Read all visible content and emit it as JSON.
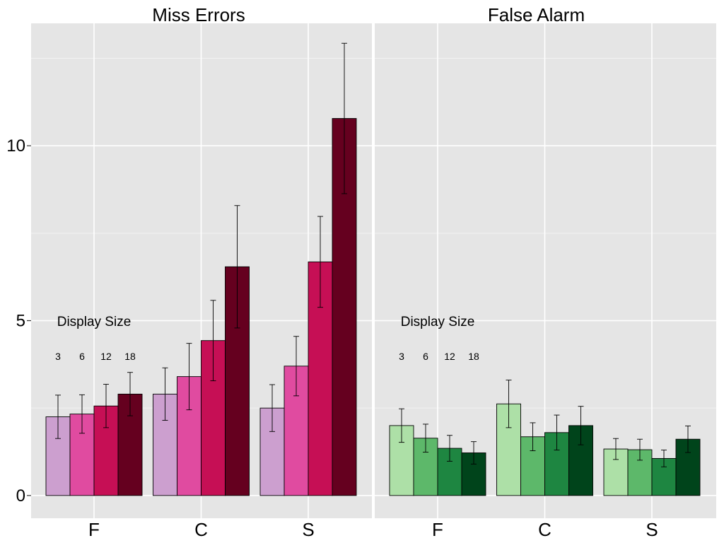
{
  "chart_data": [
    {
      "type": "bar",
      "title": "Miss Errors",
      "categories": [
        "F",
        "C",
        "S"
      ],
      "xlabel": "",
      "ylabel": "",
      "ylim": [
        -0.65,
        13.5
      ],
      "yticks": [
        0,
        5,
        10
      ],
      "legend": {
        "title": "Display Size",
        "items": [
          "3",
          "6",
          "12",
          "18"
        ],
        "placement": "inside-left"
      },
      "grid": true,
      "colors": [
        "#CC9FCF",
        "#E04BA0",
        "#C60F55",
        "#65001F"
      ],
      "series": [
        {
          "name": "3",
          "values": [
            2.25,
            2.9,
            2.5
          ],
          "error": [
            0.62,
            0.75,
            0.67
          ]
        },
        {
          "name": "6",
          "values": [
            2.33,
            3.4,
            3.7
          ],
          "error": [
            0.55,
            0.95,
            0.85
          ]
        },
        {
          "name": "12",
          "values": [
            2.56,
            4.43,
            6.68
          ],
          "error": [
            0.62,
            1.15,
            1.3
          ]
        },
        {
          "name": "18",
          "values": [
            2.9,
            6.54,
            10.78
          ],
          "error": [
            0.62,
            1.75,
            2.15
          ]
        }
      ]
    },
    {
      "type": "bar",
      "title": "False Alarm",
      "categories": [
        "F",
        "C",
        "S"
      ],
      "xlabel": "",
      "ylabel": "",
      "ylim": [
        -0.65,
        13.5
      ],
      "yticks": [
        0,
        5,
        10
      ],
      "legend": {
        "title": "Display Size",
        "items": [
          "3",
          "6",
          "12",
          "18"
        ],
        "placement": "inside-left"
      },
      "grid": true,
      "colors": [
        "#ADE0A7",
        "#5DB86A",
        "#1E8641",
        "#00441B"
      ],
      "series": [
        {
          "name": "3",
          "values": [
            2.0,
            2.62,
            1.33
          ],
          "error": [
            0.48,
            0.68,
            0.3
          ]
        },
        {
          "name": "6",
          "values": [
            1.64,
            1.68,
            1.31
          ],
          "error": [
            0.4,
            0.4,
            0.3
          ]
        },
        {
          "name": "12",
          "values": [
            1.35,
            1.8,
            1.06
          ],
          "error": [
            0.37,
            0.5,
            0.24
          ]
        },
        {
          "name": "18",
          "values": [
            1.22,
            2.0,
            1.61
          ],
          "error": [
            0.32,
            0.55,
            0.38
          ]
        }
      ]
    }
  ]
}
